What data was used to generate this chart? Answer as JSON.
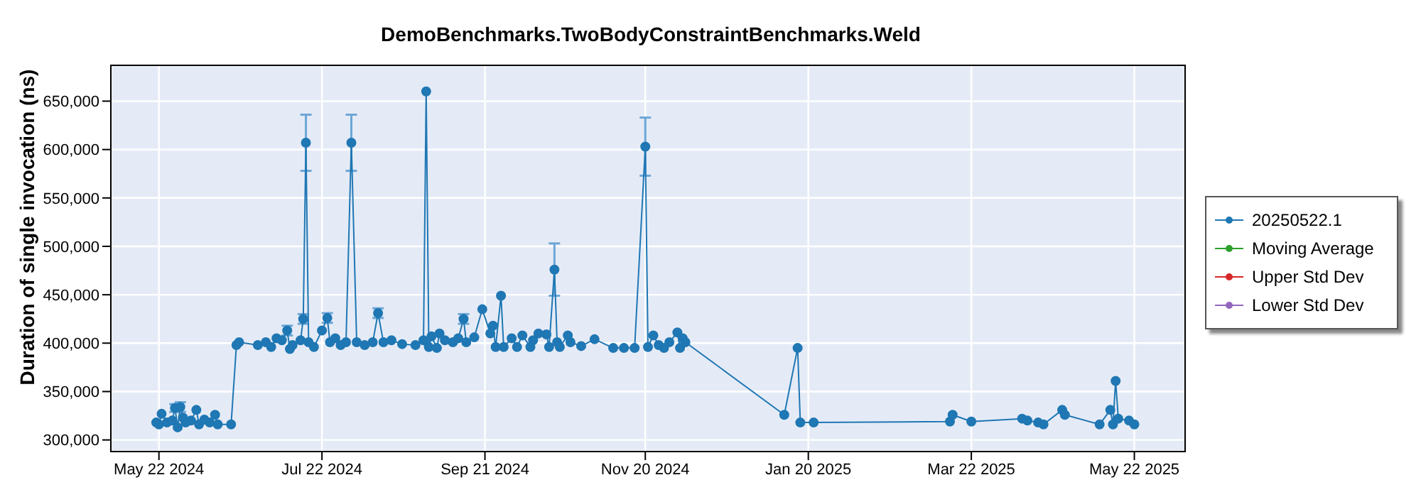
{
  "chart_data": {
    "type": "line",
    "title": "DemoBenchmarks.TwoBodyConstraintBenchmarks.Weld",
    "ylabel": "Duration of single invocation (ns)",
    "x": [
      "2024-05-21",
      "2024-05-22",
      "2024-05-23",
      "2024-05-25",
      "2024-05-27",
      "2024-05-28",
      "2024-05-29",
      "2024-05-30",
      "2024-05-31",
      "2024-06-01",
      "2024-06-03",
      "2024-06-05",
      "2024-06-06",
      "2024-06-08",
      "2024-06-10",
      "2024-06-12",
      "2024-06-13",
      "2024-06-18",
      "2024-06-20",
      "2024-06-21",
      "2024-06-28",
      "2024-07-01",
      "2024-07-03",
      "2024-07-05",
      "2024-07-07",
      "2024-07-09",
      "2024-07-10",
      "2024-07-11",
      "2024-07-14",
      "2024-07-15",
      "2024-07-16",
      "2024-07-17",
      "2024-07-19",
      "2024-07-22",
      "2024-07-24",
      "2024-07-25",
      "2024-07-27",
      "2024-07-29",
      "2024-07-31",
      "2024-08-02",
      "2024-08-04",
      "2024-08-07",
      "2024-08-10",
      "2024-08-12",
      "2024-08-14",
      "2024-08-17",
      "2024-08-21",
      "2024-08-26",
      "2024-08-29",
      "2024-08-30",
      "2024-08-31",
      "2024-09-01",
      "2024-09-03",
      "2024-09-04",
      "2024-09-06",
      "2024-09-09",
      "2024-09-11",
      "2024-09-13",
      "2024-09-14",
      "2024-09-17",
      "2024-09-20",
      "2024-09-23",
      "2024-09-24",
      "2024-09-25",
      "2024-09-27",
      "2024-09-28",
      "2024-10-01",
      "2024-10-03",
      "2024-10-05",
      "2024-10-08",
      "2024-10-09",
      "2024-10-11",
      "2024-10-14",
      "2024-10-15",
      "2024-10-17",
      "2024-10-18",
      "2024-10-19",
      "2024-10-22",
      "2024-10-23",
      "2024-10-27",
      "2024-11-01",
      "2024-11-08",
      "2024-11-12",
      "2024-11-16",
      "2024-11-20",
      "2024-11-21",
      "2024-11-23",
      "2024-11-25",
      "2024-11-27",
      "2024-11-29",
      "2024-12-02",
      "2024-12-03",
      "2024-12-04",
      "2024-12-05",
      "2025-01-11",
      "2025-01-16",
      "2025-01-17",
      "2025-01-22",
      "2025-03-14",
      "2025-03-15",
      "2025-03-22",
      "2025-04-10",
      "2025-04-12",
      "2025-04-16",
      "2025-04-18",
      "2025-04-25",
      "2025-04-26",
      "2025-05-09",
      "2025-05-13",
      "2025-05-14",
      "2025-05-15",
      "2025-05-16",
      "2025-05-20",
      "2025-05-22"
    ],
    "series": [
      {
        "name": "20250522.1",
        "color": "#1f77b4",
        "values": [
          318000,
          316000,
          327000,
          318000,
          320000,
          333000,
          313000,
          334000,
          323000,
          318000,
          320000,
          331000,
          316000,
          321000,
          318000,
          326000,
          316000,
          316000,
          398000,
          401000,
          398000,
          401000,
          396000,
          405000,
          403000,
          413000,
          394000,
          398000,
          403000,
          425000,
          607000,
          401000,
          396000,
          413000,
          426000,
          401000,
          405000,
          398000,
          401000,
          607000,
          401000,
          398000,
          401000,
          431000,
          401000,
          403000,
          399000,
          398000,
          403000,
          660000,
          396000,
          407000,
          395000,
          410000,
          403000,
          401000,
          405000,
          425000,
          401000,
          406000,
          435000,
          410000,
          418000,
          396000,
          449000,
          396000,
          405000,
          396000,
          408000,
          396000,
          403000,
          410000,
          409000,
          396000,
          476000,
          401000,
          396000,
          408000,
          401000,
          397000,
          404000,
          395000,
          395000,
          395000,
          603000,
          396000,
          408000,
          398000,
          395000,
          401000,
          411000,
          395000,
          405000,
          401000,
          326000,
          395000,
          318000,
          318000,
          319000,
          326000,
          319000,
          322000,
          320000,
          318000,
          316000,
          331000,
          326000,
          316000,
          331000,
          316000,
          361000,
          322000,
          320000,
          316000
        ],
        "errors": [
          null,
          null,
          null,
          null,
          null,
          4000,
          null,
          5000,
          null,
          null,
          null,
          null,
          null,
          null,
          null,
          null,
          null,
          null,
          null,
          null,
          null,
          null,
          null,
          null,
          null,
          5000,
          null,
          null,
          null,
          5000,
          29000,
          null,
          null,
          null,
          5000,
          null,
          null,
          null,
          null,
          29000,
          null,
          null,
          null,
          5000,
          null,
          null,
          null,
          null,
          null,
          null,
          null,
          null,
          null,
          null,
          null,
          null,
          null,
          5000,
          null,
          null,
          null,
          null,
          null,
          null,
          null,
          null,
          null,
          null,
          null,
          null,
          null,
          null,
          null,
          null,
          27000,
          null,
          null,
          null,
          null,
          null,
          null,
          null,
          null,
          null,
          30000,
          null,
          null,
          null,
          null,
          null,
          null,
          null,
          null,
          null,
          null,
          null,
          null,
          null,
          null,
          null,
          null,
          null,
          null,
          null,
          null,
          null,
          null,
          null,
          null,
          null,
          null,
          null,
          null,
          null
        ]
      },
      {
        "name": "Moving Average",
        "color": "#2ca02c",
        "values": [
          null,
          null,
          null,
          null,
          null,
          null,
          null,
          null,
          null,
          null,
          null,
          null,
          null,
          null,
          null,
          null,
          null,
          null,
          null,
          null,
          null,
          null,
          null,
          null,
          null,
          null,
          null,
          null,
          null,
          null,
          null,
          null,
          null,
          null,
          null,
          null,
          null,
          null,
          null,
          null,
          null,
          null,
          null,
          null,
          null,
          null,
          null,
          null,
          null,
          null,
          null,
          null,
          null,
          null,
          null,
          null,
          null,
          null,
          null,
          null,
          null,
          null,
          null,
          null,
          null,
          null,
          null,
          null,
          null,
          null,
          null,
          null,
          null,
          null,
          null,
          null,
          null,
          null,
          null,
          null,
          null,
          null,
          null,
          null,
          null,
          null,
          null,
          null,
          null,
          null,
          null,
          null,
          null,
          null,
          null,
          null,
          null,
          null,
          null,
          null,
          null,
          null,
          null,
          null,
          null,
          null,
          null,
          null,
          null,
          null,
          null,
          null,
          null,
          null
        ]
      },
      {
        "name": "Upper Std Dev",
        "color": "#d62728",
        "values": [
          null,
          null,
          null,
          null,
          null,
          null,
          null,
          null,
          null,
          null,
          null,
          null,
          null,
          null,
          null,
          null,
          null,
          null,
          null,
          null,
          null,
          null,
          null,
          null,
          null,
          null,
          null,
          null,
          null,
          null,
          null,
          null,
          null,
          null,
          null,
          null,
          null,
          null,
          null,
          null,
          null,
          null,
          null,
          null,
          null,
          null,
          null,
          null,
          null,
          null,
          null,
          null,
          null,
          null,
          null,
          null,
          null,
          null,
          null,
          null,
          null,
          null,
          null,
          null,
          null,
          null,
          null,
          null,
          null,
          null,
          null,
          null,
          null,
          null,
          null,
          null,
          null,
          null,
          null,
          null,
          null,
          null,
          null,
          null,
          null,
          null,
          null,
          null,
          null,
          null,
          null,
          null,
          null,
          null,
          null,
          null,
          null,
          null,
          null,
          null,
          null,
          null,
          null,
          null,
          null,
          null,
          null,
          null,
          null,
          null,
          null,
          null,
          null,
          null
        ]
      },
      {
        "name": "Lower Std Dev",
        "color": "#9467bd",
        "values": [
          null,
          null,
          null,
          null,
          null,
          null,
          null,
          null,
          null,
          null,
          null,
          null,
          null,
          null,
          null,
          null,
          null,
          null,
          null,
          null,
          null,
          null,
          null,
          null,
          null,
          null,
          null,
          null,
          null,
          null,
          null,
          null,
          null,
          null,
          null,
          null,
          null,
          null,
          null,
          null,
          null,
          null,
          null,
          null,
          null,
          null,
          null,
          null,
          null,
          null,
          null,
          null,
          null,
          null,
          null,
          null,
          null,
          null,
          null,
          null,
          null,
          null,
          null,
          null,
          null,
          null,
          null,
          null,
          null,
          null,
          null,
          null,
          null,
          null,
          null,
          null,
          null,
          null,
          null,
          null,
          null,
          null,
          null,
          null,
          null,
          null,
          null,
          null,
          null,
          null,
          null,
          null,
          null,
          null,
          null,
          null,
          null,
          null,
          null,
          null,
          null,
          null,
          null,
          null,
          null,
          null,
          null,
          null,
          null,
          null,
          null,
          null,
          null,
          null
        ]
      }
    ],
    "xlim": [
      "2024-05-04",
      "2025-06-10"
    ],
    "xticks": [
      {
        "value": "2024-05-22",
        "label": "May 22 2024"
      },
      {
        "value": "2024-07-22",
        "label": "Jul 22 2024"
      },
      {
        "value": "2024-09-21",
        "label": "Sep 21 2024"
      },
      {
        "value": "2024-11-20",
        "label": "Nov 20 2024"
      },
      {
        "value": "2025-01-20",
        "label": "Jan 20 2025"
      },
      {
        "value": "2025-03-22",
        "label": "Mar 22 2025"
      },
      {
        "value": "2025-05-22",
        "label": "May 22 2025"
      }
    ],
    "ylim": [
      288000,
      687000
    ],
    "yticks": [
      {
        "value": 300000,
        "label": "300,000"
      },
      {
        "value": 350000,
        "label": "350,000"
      },
      {
        "value": 400000,
        "label": "400,000"
      },
      {
        "value": 450000,
        "label": "450,000"
      },
      {
        "value": 500000,
        "label": "500,000"
      },
      {
        "value": 550000,
        "label": "550,000"
      },
      {
        "value": 600000,
        "label": "600,000"
      },
      {
        "value": 650000,
        "label": "650,000"
      }
    ],
    "grid": true,
    "legend": "right",
    "marker": "circle",
    "line_style": "solid"
  }
}
